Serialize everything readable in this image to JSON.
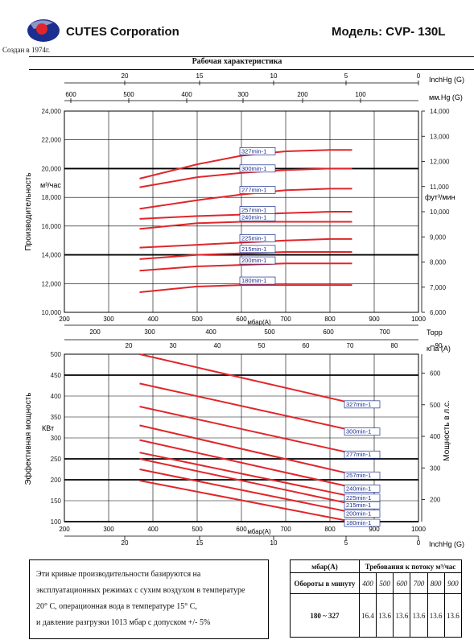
{
  "header": {
    "company": "CUTES Corporation",
    "founded": "Создан в 1974г.",
    "model": "Модель: CVP- 130L",
    "section_title": "Рабочая характеристика"
  },
  "colors": {
    "curve": "#e0262a",
    "grid": "#000000",
    "logo_blue": "#1c2f8f",
    "logo_red": "#e0262a"
  },
  "chart_data": [
    {
      "type": "line",
      "name": "capacity",
      "ylabel": "Производительность",
      "yunit_left": "м³/час",
      "yunit_right": "фут³/мин",
      "xlabel": "мбар(А)",
      "x_range": [
        200,
        1000
      ],
      "ylim": [
        10000,
        24000
      ],
      "y_ticks": [
        "10,000",
        "12,000",
        "14,000",
        "16,000",
        "18,000",
        "20,000",
        "22,000",
        "24,000"
      ],
      "right_ticks": [
        "6,000",
        "7,000",
        "8,000",
        "9,000",
        "10,000",
        "11,000",
        "12,000",
        "13,000",
        "14,000"
      ],
      "right_range": [
        6000,
        14000
      ],
      "x_ticks": [
        "200",
        "300",
        "400",
        "500",
        "600",
        "700",
        "800",
        "900",
        "1000"
      ],
      "top_inchhg_label": "InchHg (G)",
      "top_inchhg_ticks": [
        "20",
        "15",
        "10",
        "5",
        "0"
      ],
      "top_mmhg_label": "мм.Hg (G)",
      "top_mmhg_ticks": [
        "600",
        "500",
        "400",
        "300",
        "200",
        "100"
      ],
      "bottom_torr_label": "Торр",
      "bottom_torr_ticks": [
        "200",
        "300",
        "400",
        "500",
        "600",
        "700"
      ],
      "series": [
        {
          "name": "327min-1",
          "x": [
            370,
            500,
            600,
            700,
            800,
            850
          ],
          "y": [
            19300,
            20300,
            20900,
            21200,
            21300,
            21300
          ]
        },
        {
          "name": "300min-1",
          "x": [
            370,
            500,
            600,
            700,
            800,
            850
          ],
          "y": [
            18700,
            19400,
            19700,
            19900,
            20000,
            20000
          ]
        },
        {
          "name": "277min-1",
          "x": [
            370,
            500,
            600,
            700,
            800,
            850
          ],
          "y": [
            17200,
            17800,
            18200,
            18500,
            18600,
            18600
          ]
        },
        {
          "name": "257min-1",
          "x": [
            370,
            500,
            600,
            700,
            800,
            850
          ],
          "y": [
            16500,
            16700,
            16800,
            16900,
            17000,
            17000
          ]
        },
        {
          "name": "240min-1",
          "x": [
            370,
            500,
            600,
            700,
            800,
            850
          ],
          "y": [
            15800,
            16200,
            16300,
            16300,
            16300,
            16300
          ]
        },
        {
          "name": "225min-1",
          "x": [
            370,
            500,
            600,
            700,
            800,
            850
          ],
          "y": [
            14500,
            14700,
            14850,
            15000,
            15100,
            15100
          ]
        },
        {
          "name": "215min-1",
          "x": [
            370,
            500,
            600,
            700,
            800,
            850
          ],
          "y": [
            13700,
            14000,
            14100,
            14200,
            14200,
            14200
          ]
        },
        {
          "name": "200min-1",
          "x": [
            370,
            500,
            600,
            700,
            800,
            850
          ],
          "y": [
            12900,
            13200,
            13300,
            13400,
            13400,
            13400
          ]
        },
        {
          "name": "180min-1",
          "x": [
            370,
            500,
            600,
            700,
            800,
            850
          ],
          "y": [
            11400,
            11800,
            11900,
            11900,
            11900,
            11900
          ]
        }
      ]
    },
    {
      "type": "line",
      "name": "power",
      "ylabel": "Эффективная мощность",
      "yunit_left": "КВт",
      "right_label": "Мощность в л.с.",
      "xlabel": "мбар(А)",
      "x_range": [
        200,
        1000
      ],
      "ylim": [
        100,
        500
      ],
      "y_ticks": [
        "100",
        "150",
        "200",
        "250",
        "300",
        "350",
        "400",
        "450",
        "500"
      ],
      "right_ticks": [
        "200",
        "300",
        "400",
        "500",
        "600"
      ],
      "top_kpa_label": "кПа (А)",
      "top_kpa_ticks": [
        "20",
        "30",
        "40",
        "50",
        "60",
        "70",
        "80",
        "90",
        "100"
      ],
      "x_ticks": [
        "200",
        "300",
        "400",
        "500",
        "600",
        "700",
        "800",
        "900",
        "1000"
      ],
      "bottom_inchhg_label": "InchHg (G)",
      "bottom_inchhg_ticks": [
        "20",
        "15",
        "10",
        "5",
        "0"
      ],
      "series": [
        {
          "name": "327min-1",
          "x": [
            370,
            850
          ],
          "y": [
            500,
            383
          ]
        },
        {
          "name": "300min-1",
          "x": [
            370,
            850
          ],
          "y": [
            430,
            318
          ]
        },
        {
          "name": "277min-1",
          "x": [
            370,
            850
          ],
          "y": [
            375,
            263
          ]
        },
        {
          "name": "257min-1",
          "x": [
            370,
            850
          ],
          "y": [
            330,
            213
          ]
        },
        {
          "name": "240min-1",
          "x": [
            370,
            850
          ],
          "y": [
            295,
            182
          ]
        },
        {
          "name": "225min-1",
          "x": [
            370,
            850
          ],
          "y": [
            265,
            160
          ]
        },
        {
          "name": "215min-1",
          "x": [
            370,
            850
          ],
          "y": [
            250,
            142
          ]
        },
        {
          "name": "200min-1",
          "x": [
            370,
            850
          ],
          "y": [
            225,
            122
          ]
        },
        {
          "name": "180min-1",
          "x": [
            370,
            850
          ],
          "y": [
            198,
            100
          ]
        }
      ]
    }
  ],
  "note": {
    "lines": [
      "Эти кривые производительности базируются на",
      "эксплуатационных режимах с сухим воздухом в температуре",
      "20° С, операционная вода в температуре 15° С,",
      "и давление разгрузки 1013 мбар с допуском +/- 5%"
    ]
  },
  "flow_table": {
    "col1_header": "мбар(А)",
    "title": "Требования к потоку м³/час",
    "row_header": "Обороты в минуту",
    "pressures": [
      "400",
      "500",
      "600",
      "700",
      "800",
      "900"
    ],
    "rpm_range": "180 ~ 327",
    "values": [
      "16.4",
      "13.6",
      "13.6",
      "13.6",
      "13.6",
      "13.6"
    ]
  }
}
